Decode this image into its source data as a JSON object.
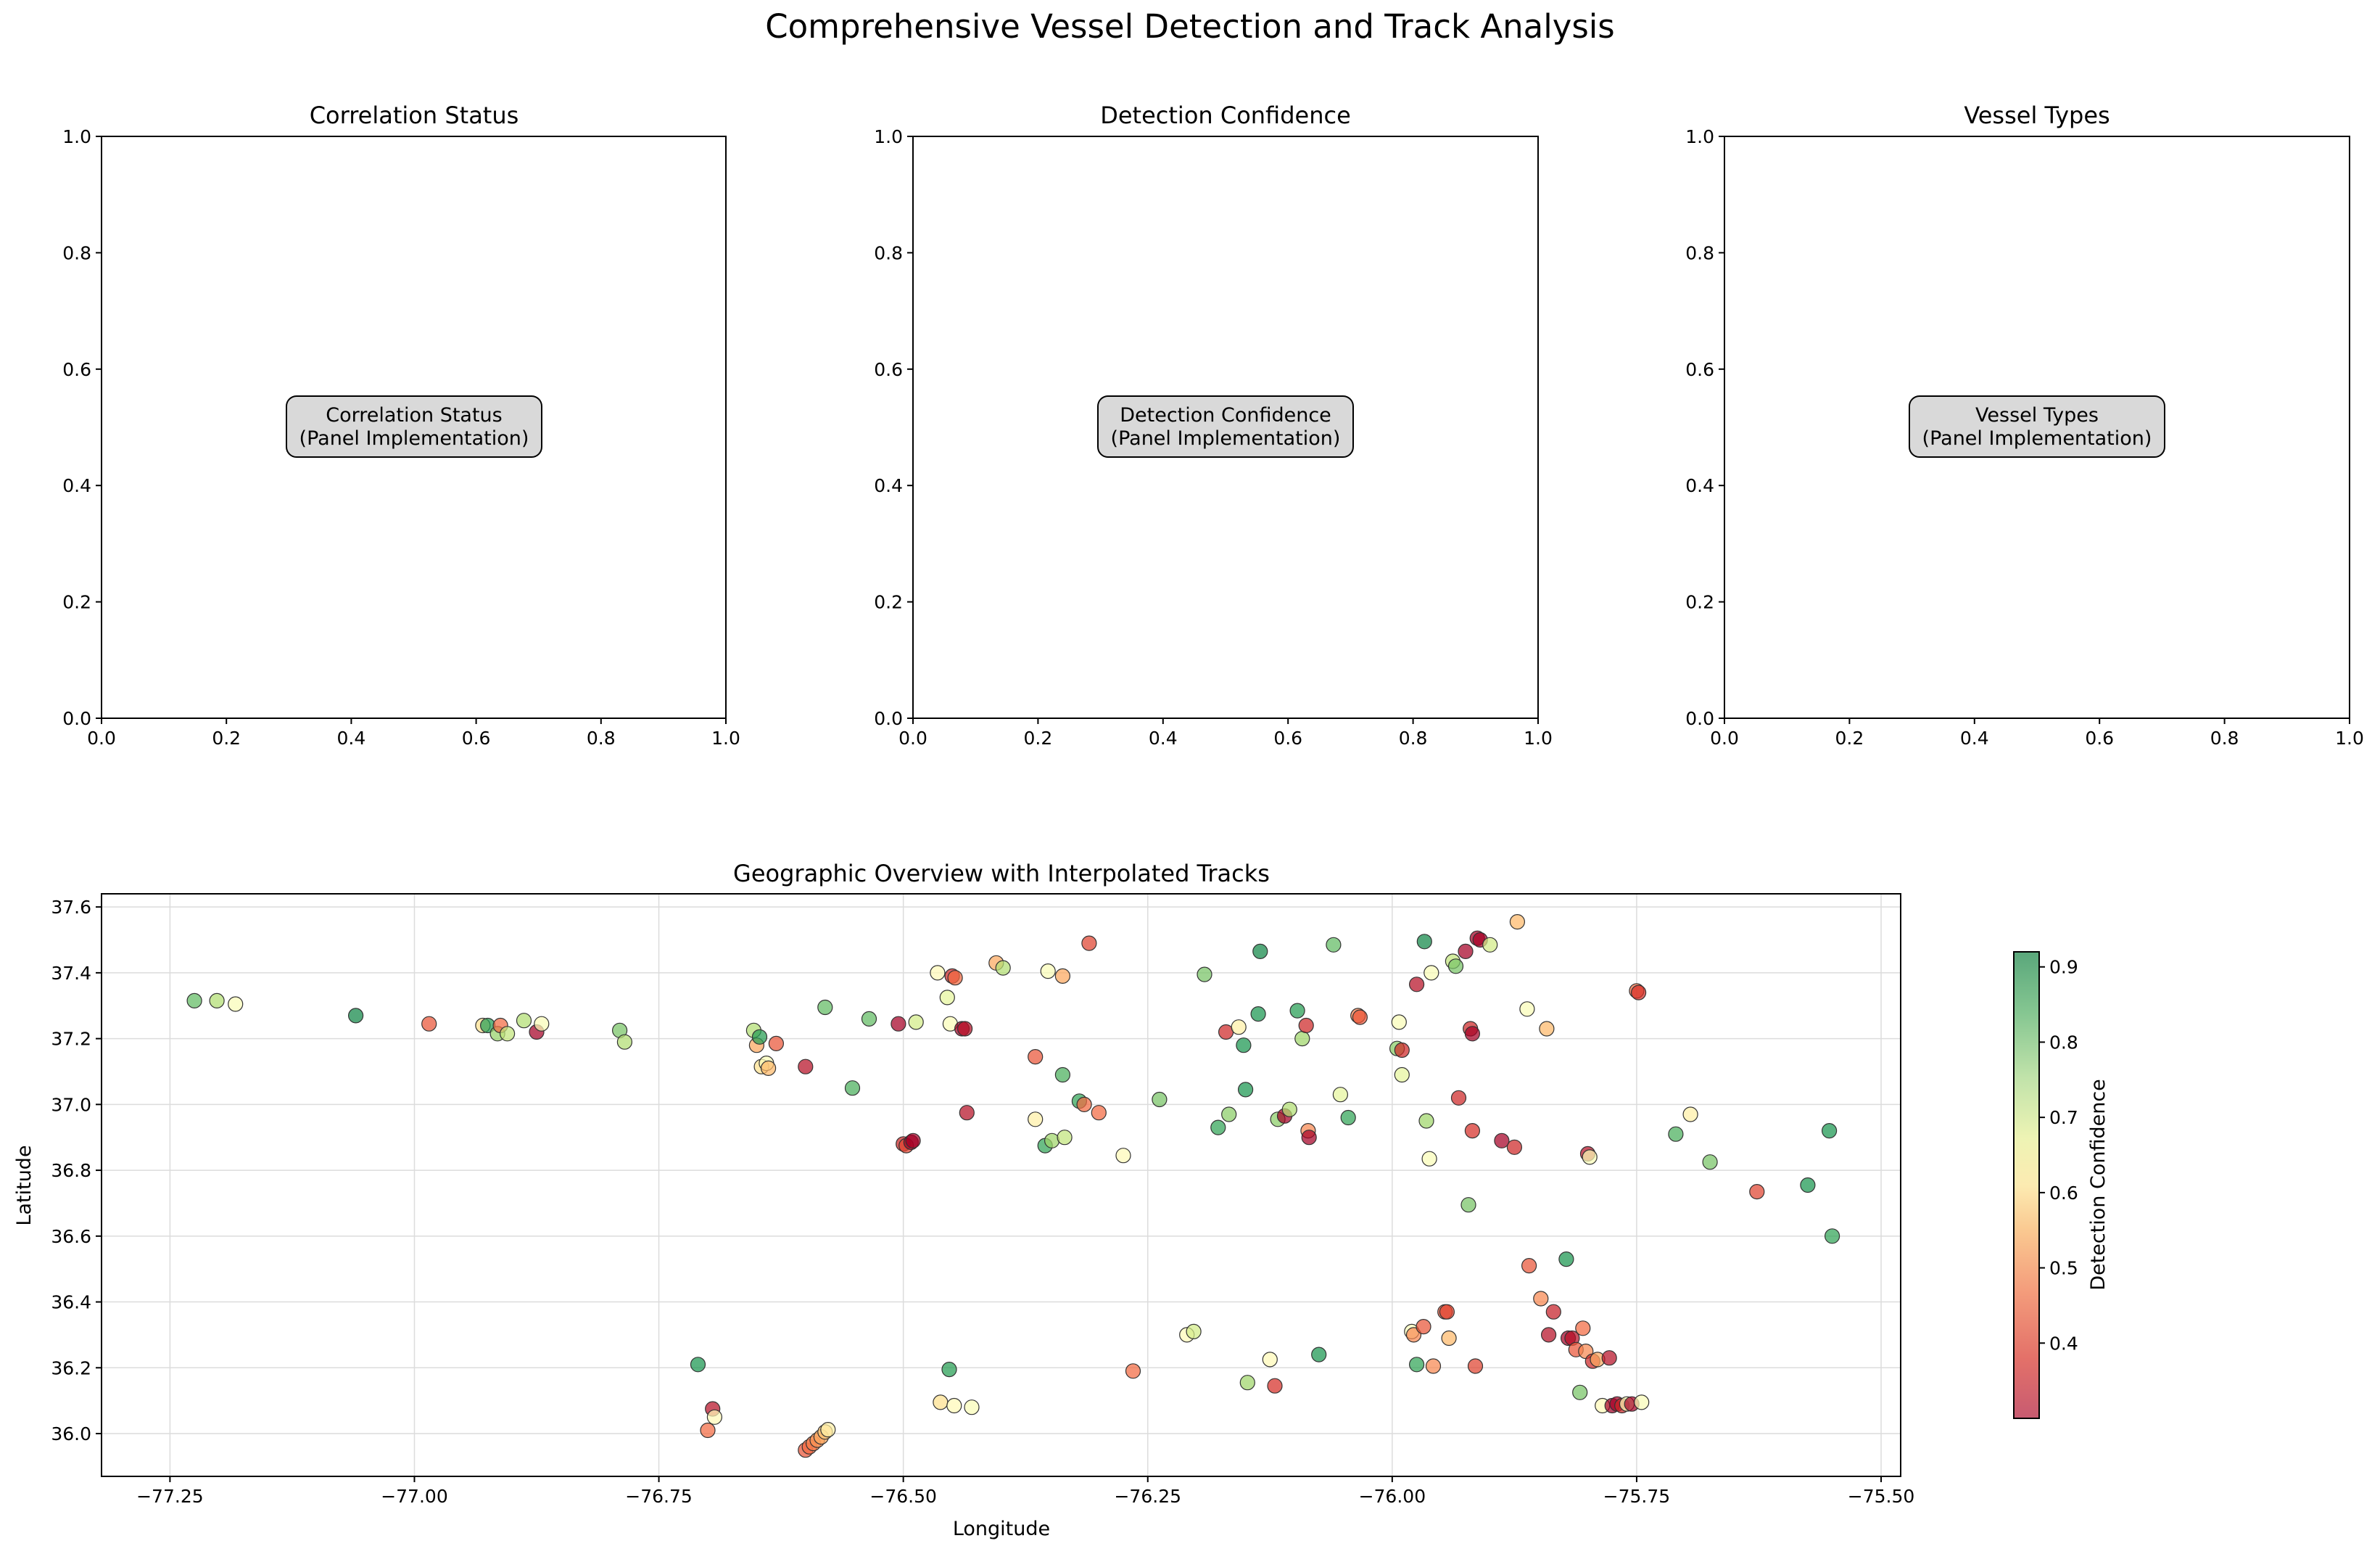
{
  "figure": {
    "title": "Comprehensive Vessel Detection and Track Analysis"
  },
  "colorbar": {
    "label": "Detection Confidence",
    "min": 0.3,
    "max": 0.92,
    "ticks": [
      0.4,
      0.5,
      0.6,
      0.7,
      0.8,
      0.9
    ],
    "tick_labels": [
      "0.4",
      "0.5",
      "0.6",
      "0.7",
      "0.8",
      "0.9"
    ],
    "colormap": "RdYlGn (alpha 0.7)"
  },
  "chart_data": [
    {
      "type": "scatter",
      "title": "Correlation Status",
      "placeholder_text": [
        "Correlation Status",
        "(Panel Implementation)"
      ],
      "xlim": [
        0,
        1
      ],
      "ylim": [
        0,
        1
      ],
      "xticks": [
        "0.0",
        "0.2",
        "0.4",
        "0.6",
        "0.8",
        "1.0"
      ],
      "yticks": [
        "0.0",
        "0.2",
        "0.4",
        "0.6",
        "0.8",
        "1.0"
      ],
      "points": []
    },
    {
      "type": "scatter",
      "title": "Detection Confidence",
      "placeholder_text": [
        "Detection Confidence",
        "(Panel Implementation)"
      ],
      "xlim": [
        0,
        1
      ],
      "ylim": [
        0,
        1
      ],
      "xticks": [
        "0.0",
        "0.2",
        "0.4",
        "0.6",
        "0.8",
        "1.0"
      ],
      "yticks": [
        "0.0",
        "0.2",
        "0.4",
        "0.6",
        "0.8",
        "1.0"
      ],
      "points": []
    },
    {
      "type": "scatter",
      "title": "Vessel Types",
      "placeholder_text": [
        "Vessel Types",
        "(Panel Implementation)"
      ],
      "xlim": [
        0,
        1
      ],
      "ylim": [
        0,
        1
      ],
      "xticks": [
        "0.0",
        "0.2",
        "0.4",
        "0.6",
        "0.8",
        "1.0"
      ],
      "yticks": [
        "0.0",
        "0.2",
        "0.4",
        "0.6",
        "0.8",
        "1.0"
      ],
      "points": []
    },
    {
      "type": "scatter",
      "title": "Geographic Overview with Interpolated Tracks",
      "xlabel": "Longitude",
      "ylabel": "Latitude",
      "xlim": [
        -77.32,
        -75.48
      ],
      "ylim": [
        35.87,
        37.64
      ],
      "xticks": [
        -77.25,
        -77.0,
        -76.75,
        -76.5,
        -76.25,
        -76.0,
        -75.75,
        -75.5
      ],
      "xtick_labels": [
        "−77.25",
        "−77.00",
        "−76.75",
        "−76.50",
        "−76.25",
        "−76.00",
        "−75.75",
        "−75.50"
      ],
      "yticks": [
        36.0,
        36.2,
        36.4,
        36.6,
        36.8,
        37.0,
        37.2,
        37.4,
        37.6
      ],
      "ytick_labels": [
        "36.0",
        "36.2",
        "36.4",
        "36.6",
        "36.8",
        "37.0",
        "37.2",
        "37.4",
        "37.6"
      ],
      "grid": true,
      "color_by": "Detection Confidence",
      "points": [
        {
          "lon": -77.225,
          "lat": 37.315,
          "c": 0.8
        },
        {
          "lon": -77.202,
          "lat": 37.315,
          "c": 0.72
        },
        {
          "lon": -77.183,
          "lat": 37.305,
          "c": 0.62
        },
        {
          "lon": -77.06,
          "lat": 37.27,
          "c": 0.88
        },
        {
          "lon": -76.985,
          "lat": 37.245,
          "c": 0.4
        },
        {
          "lon": -76.93,
          "lat": 37.24,
          "c": 0.55
        },
        {
          "lon": -76.925,
          "lat": 37.24,
          "c": 0.85
        },
        {
          "lon": -76.915,
          "lat": 37.215,
          "c": 0.75
        },
        {
          "lon": -76.912,
          "lat": 37.24,
          "c": 0.42
        },
        {
          "lon": -76.905,
          "lat": 37.215,
          "c": 0.7
        },
        {
          "lon": -76.888,
          "lat": 37.255,
          "c": 0.72
        },
        {
          "lon": -76.875,
          "lat": 37.22,
          "c": 0.3
        },
        {
          "lon": -76.87,
          "lat": 37.245,
          "c": 0.62
        },
        {
          "lon": -76.79,
          "lat": 37.225,
          "c": 0.78
        },
        {
          "lon": -76.785,
          "lat": 37.19,
          "c": 0.72
        },
        {
          "lon": -76.71,
          "lat": 36.21,
          "c": 0.86
        },
        {
          "lon": -76.7,
          "lat": 36.01,
          "c": 0.42
        },
        {
          "lon": -76.695,
          "lat": 36.075,
          "c": 0.32
        },
        {
          "lon": -76.693,
          "lat": 36.05,
          "c": 0.6
        },
        {
          "lon": -76.653,
          "lat": 37.225,
          "c": 0.72
        },
        {
          "lon": -76.65,
          "lat": 37.18,
          "c": 0.48
        },
        {
          "lon": -76.647,
          "lat": 37.205,
          "c": 0.85
        },
        {
          "lon": -76.645,
          "lat": 37.115,
          "c": 0.55
        },
        {
          "lon": -76.64,
          "lat": 37.125,
          "c": 0.62
        },
        {
          "lon": -76.638,
          "lat": 37.11,
          "c": 0.5
        },
        {
          "lon": -76.63,
          "lat": 37.185,
          "c": 0.4
        },
        {
          "lon": -76.6,
          "lat": 37.115,
          "c": 0.32
        },
        {
          "lon": -76.6,
          "lat": 35.95,
          "c": 0.4
        },
        {
          "lon": -76.596,
          "lat": 35.96,
          "c": 0.42
        },
        {
          "lon": -76.592,
          "lat": 35.97,
          "c": 0.44
        },
        {
          "lon": -76.588,
          "lat": 35.98,
          "c": 0.46
        },
        {
          "lon": -76.584,
          "lat": 35.99,
          "c": 0.48
        },
        {
          "lon": -76.58,
          "lat": 36.005,
          "c": 0.52
        },
        {
          "lon": -76.577,
          "lat": 36.012,
          "c": 0.58
        },
        {
          "lon": -76.58,
          "lat": 37.295,
          "c": 0.8
        },
        {
          "lon": -76.552,
          "lat": 37.05,
          "c": 0.82
        },
        {
          "lon": -76.535,
          "lat": 37.26,
          "c": 0.8
        },
        {
          "lon": -76.505,
          "lat": 37.245,
          "c": 0.3
        },
        {
          "lon": -76.5,
          "lat": 36.88,
          "c": 0.35
        },
        {
          "lon": -76.497,
          "lat": 36.875,
          "c": 0.38
        },
        {
          "lon": -76.492,
          "lat": 36.885,
          "c": 0.3
        },
        {
          "lon": -76.49,
          "lat": 36.89,
          "c": 0.3
        },
        {
          "lon": -76.487,
          "lat": 37.25,
          "c": 0.68
        },
        {
          "lon": -76.465,
          "lat": 37.4,
          "c": 0.6
        },
        {
          "lon": -76.462,
          "lat": 36.095,
          "c": 0.55
        },
        {
          "lon": -76.455,
          "lat": 37.325,
          "c": 0.65
        },
        {
          "lon": -76.453,
          "lat": 36.195,
          "c": 0.85
        },
        {
          "lon": -76.452,
          "lat": 37.245,
          "c": 0.62
        },
        {
          "lon": -76.45,
          "lat": 37.39,
          "c": 0.35
        },
        {
          "lon": -76.448,
          "lat": 36.085,
          "c": 0.6
        },
        {
          "lon": -76.447,
          "lat": 37.385,
          "c": 0.42
        },
        {
          "lon": -76.44,
          "lat": 37.23,
          "c": 0.3
        },
        {
          "lon": -76.437,
          "lat": 37.23,
          "c": 0.32
        },
        {
          "lon": -76.435,
          "lat": 36.975,
          "c": 0.32
        },
        {
          "lon": -76.43,
          "lat": 36.08,
          "c": 0.62
        },
        {
          "lon": -76.405,
          "lat": 37.43,
          "c": 0.48
        },
        {
          "lon": -76.398,
          "lat": 37.415,
          "c": 0.72
        },
        {
          "lon": -76.365,
          "lat": 37.145,
          "c": 0.4
        },
        {
          "lon": -76.365,
          "lat": 36.955,
          "c": 0.58
        },
        {
          "lon": -76.355,
          "lat": 36.875,
          "c": 0.84
        },
        {
          "lon": -76.352,
          "lat": 37.405,
          "c": 0.62
        },
        {
          "lon": -76.348,
          "lat": 36.89,
          "c": 0.74
        },
        {
          "lon": -76.337,
          "lat": 37.39,
          "c": 0.48
        },
        {
          "lon": -76.337,
          "lat": 37.09,
          "c": 0.82
        },
        {
          "lon": -76.335,
          "lat": 36.9,
          "c": 0.7
        },
        {
          "lon": -76.32,
          "lat": 37.01,
          "c": 0.84
        },
        {
          "lon": -76.315,
          "lat": 37.0,
          "c": 0.42
        },
        {
          "lon": -76.31,
          "lat": 37.49,
          "c": 0.38
        },
        {
          "lon": -76.3,
          "lat": 36.975,
          "c": 0.42
        },
        {
          "lon": -76.275,
          "lat": 36.845,
          "c": 0.6
        },
        {
          "lon": -76.265,
          "lat": 36.19,
          "c": 0.42
        },
        {
          "lon": -76.238,
          "lat": 37.015,
          "c": 0.78
        },
        {
          "lon": -76.21,
          "lat": 36.3,
          "c": 0.6
        },
        {
          "lon": -76.203,
          "lat": 36.31,
          "c": 0.68
        },
        {
          "lon": -76.192,
          "lat": 37.395,
          "c": 0.78
        },
        {
          "lon": -76.178,
          "lat": 36.93,
          "c": 0.84
        },
        {
          "lon": -76.17,
          "lat": 37.22,
          "c": 0.35
        },
        {
          "lon": -76.167,
          "lat": 36.97,
          "c": 0.76
        },
        {
          "lon": -76.157,
          "lat": 37.235,
          "c": 0.58
        },
        {
          "lon": -76.152,
          "lat": 37.18,
          "c": 0.86
        },
        {
          "lon": -76.15,
          "lat": 37.045,
          "c": 0.86
        },
        {
          "lon": -76.148,
          "lat": 36.155,
          "c": 0.74
        },
        {
          "lon": -76.137,
          "lat": 37.275,
          "c": 0.86
        },
        {
          "lon": -76.135,
          "lat": 37.465,
          "c": 0.88
        },
        {
          "lon": -76.125,
          "lat": 36.225,
          "c": 0.6
        },
        {
          "lon": -76.12,
          "lat": 36.145,
          "c": 0.36
        },
        {
          "lon": -76.117,
          "lat": 36.955,
          "c": 0.76
        },
        {
          "lon": -76.11,
          "lat": 36.965,
          "c": 0.3
        },
        {
          "lon": -76.105,
          "lat": 36.985,
          "c": 0.72
        },
        {
          "lon": -76.097,
          "lat": 37.285,
          "c": 0.85
        },
        {
          "lon": -76.092,
          "lat": 37.2,
          "c": 0.74
        },
        {
          "lon": -76.088,
          "lat": 37.24,
          "c": 0.35
        },
        {
          "lon": -76.086,
          "lat": 36.92,
          "c": 0.45
        },
        {
          "lon": -76.085,
          "lat": 36.9,
          "c": 0.3
        },
        {
          "lon": -76.075,
          "lat": 36.24,
          "c": 0.86
        },
        {
          "lon": -76.06,
          "lat": 37.485,
          "c": 0.8
        },
        {
          "lon": -76.053,
          "lat": 37.03,
          "c": 0.65
        },
        {
          "lon": -76.045,
          "lat": 36.96,
          "c": 0.84
        },
        {
          "lon": -76.035,
          "lat": 37.27,
          "c": 0.44
        },
        {
          "lon": -76.033,
          "lat": 37.265,
          "c": 0.4
        },
        {
          "lon": -75.995,
          "lat": 37.17,
          "c": 0.76
        },
        {
          "lon": -75.993,
          "lat": 37.25,
          "c": 0.62
        },
        {
          "lon": -75.99,
          "lat": 37.165,
          "c": 0.35
        },
        {
          "lon": -75.99,
          "lat": 37.09,
          "c": 0.65
        },
        {
          "lon": -75.98,
          "lat": 36.31,
          "c": 0.62
        },
        {
          "lon": -75.978,
          "lat": 36.3,
          "c": 0.45
        },
        {
          "lon": -75.975,
          "lat": 37.365,
          "c": 0.32
        },
        {
          "lon": -75.975,
          "lat": 36.21,
          "c": 0.84
        },
        {
          "lon": -75.968,
          "lat": 36.325,
          "c": 0.4
        },
        {
          "lon": -75.967,
          "lat": 37.495,
          "c": 0.88
        },
        {
          "lon": -75.965,
          "lat": 36.95,
          "c": 0.74
        },
        {
          "lon": -75.962,
          "lat": 36.835,
          "c": 0.62
        },
        {
          "lon": -75.96,
          "lat": 37.4,
          "c": 0.62
        },
        {
          "lon": -75.958,
          "lat": 36.205,
          "c": 0.45
        },
        {
          "lon": -75.946,
          "lat": 36.37,
          "c": 0.4
        },
        {
          "lon": -75.944,
          "lat": 36.37,
          "c": 0.38
        },
        {
          "lon": -75.942,
          "lat": 36.29,
          "c": 0.5
        },
        {
          "lon": -75.938,
          "lat": 37.435,
          "c": 0.7
        },
        {
          "lon": -75.935,
          "lat": 37.42,
          "c": 0.78
        },
        {
          "lon": -75.932,
          "lat": 37.02,
          "c": 0.35
        },
        {
          "lon": -75.925,
          "lat": 37.465,
          "c": 0.3
        },
        {
          "lon": -75.922,
          "lat": 36.695,
          "c": 0.78
        },
        {
          "lon": -75.92,
          "lat": 37.23,
          "c": 0.35
        },
        {
          "lon": -75.918,
          "lat": 37.215,
          "c": 0.3
        },
        {
          "lon": -75.918,
          "lat": 36.92,
          "c": 0.36
        },
        {
          "lon": -75.915,
          "lat": 36.205,
          "c": 0.38
        },
        {
          "lon": -75.913,
          "lat": 37.505,
          "c": 0.3
        },
        {
          "lon": -75.91,
          "lat": 37.5,
          "c": 0.3
        },
        {
          "lon": -75.9,
          "lat": 37.485,
          "c": 0.68
        },
        {
          "lon": -75.888,
          "lat": 36.89,
          "c": 0.3
        },
        {
          "lon": -75.875,
          "lat": 36.87,
          "c": 0.35
        },
        {
          "lon": -75.872,
          "lat": 37.555,
          "c": 0.5
        },
        {
          "lon": -75.862,
          "lat": 37.29,
          "c": 0.62
        },
        {
          "lon": -75.86,
          "lat": 36.51,
          "c": 0.4
        },
        {
          "lon": -75.848,
          "lat": 36.41,
          "c": 0.45
        },
        {
          "lon": -75.842,
          "lat": 37.23,
          "c": 0.5
        },
        {
          "lon": -75.84,
          "lat": 36.3,
          "c": 0.32
        },
        {
          "lon": -75.835,
          "lat": 36.37,
          "c": 0.34
        },
        {
          "lon": -75.822,
          "lat": 36.53,
          "c": 0.86
        },
        {
          "lon": -75.82,
          "lat": 36.29,
          "c": 0.3
        },
        {
          "lon": -75.816,
          "lat": 36.29,
          "c": 0.32
        },
        {
          "lon": -75.812,
          "lat": 36.255,
          "c": 0.4
        },
        {
          "lon": -75.808,
          "lat": 36.125,
          "c": 0.78
        },
        {
          "lon": -75.805,
          "lat": 36.32,
          "c": 0.42
        },
        {
          "lon": -75.802,
          "lat": 36.25,
          "c": 0.45
        },
        {
          "lon": -75.8,
          "lat": 36.85,
          "c": 0.32
        },
        {
          "lon": -75.798,
          "lat": 36.84,
          "c": 0.62
        },
        {
          "lon": -75.795,
          "lat": 36.22,
          "c": 0.35
        },
        {
          "lon": -75.79,
          "lat": 36.225,
          "c": 0.48
        },
        {
          "lon": -75.785,
          "lat": 36.085,
          "c": 0.6
        },
        {
          "lon": -75.778,
          "lat": 36.23,
          "c": 0.32
        },
        {
          "lon": -75.775,
          "lat": 36.085,
          "c": 0.3
        },
        {
          "lon": -75.77,
          "lat": 36.09,
          "c": 0.3
        },
        {
          "lon": -75.765,
          "lat": 36.085,
          "c": 0.35
        },
        {
          "lon": -75.76,
          "lat": 36.09,
          "c": 0.62
        },
        {
          "lon": -75.755,
          "lat": 36.09,
          "c": 0.3
        },
        {
          "lon": -75.75,
          "lat": 37.345,
          "c": 0.42
        },
        {
          "lon": -75.748,
          "lat": 37.34,
          "c": 0.36
        },
        {
          "lon": -75.745,
          "lat": 36.095,
          "c": 0.62
        },
        {
          "lon": -75.71,
          "lat": 36.91,
          "c": 0.82
        },
        {
          "lon": -75.695,
          "lat": 36.97,
          "c": 0.58
        },
        {
          "lon": -75.675,
          "lat": 36.825,
          "c": 0.78
        },
        {
          "lon": -75.627,
          "lat": 36.735,
          "c": 0.38
        },
        {
          "lon": -75.575,
          "lat": 36.755,
          "c": 0.86
        },
        {
          "lon": -75.553,
          "lat": 36.92,
          "c": 0.86
        },
        {
          "lon": -75.55,
          "lat": 36.6,
          "c": 0.84
        }
      ]
    }
  ]
}
